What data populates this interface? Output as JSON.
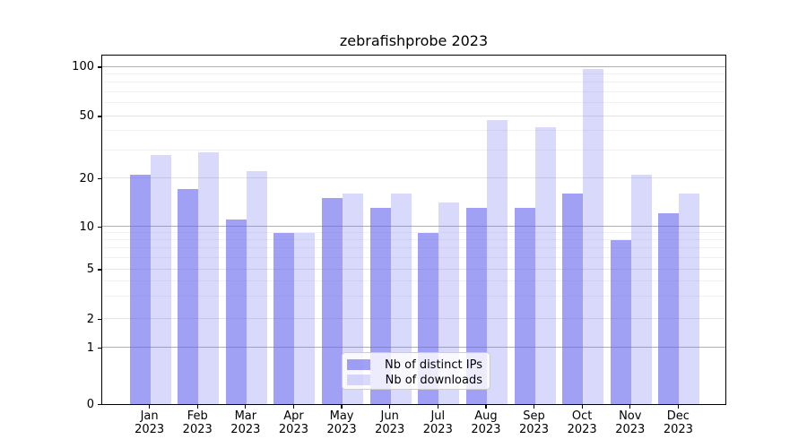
{
  "title": "zebrafishprobe 2023",
  "legend": [
    {
      "label": "Nb of distinct IPs",
      "color": "rgba(102,102,238,0.62)"
    },
    {
      "label": "Nb of downloads",
      "color": "rgba(102,102,238,0.25)"
    }
  ],
  "axis": {
    "y_ticks": [
      0,
      1,
      2,
      5,
      10,
      20,
      50,
      100
    ],
    "y_minor_gridlines": [
      3,
      4,
      6,
      7,
      8,
      9,
      30,
      40,
      60,
      70,
      80,
      90
    ],
    "year_label": "2023"
  },
  "colors": {
    "bar_distinct_ips": "rgba(102,102,238,0.62)",
    "bar_downloads": "rgba(102,102,238,0.25)",
    "gridline_power10": "#b0b0b0",
    "gridline_major": "#e4e4e4",
    "gridline_minor": "#f2f2f2",
    "spine": "#000000"
  },
  "chart_data": {
    "type": "bar",
    "title": "zebrafishprobe 2023",
    "categories": [
      "Jan",
      "Feb",
      "Mar",
      "Apr",
      "May",
      "Jun",
      "Jul",
      "Aug",
      "Sep",
      "Oct",
      "Nov",
      "Dec"
    ],
    "category_year": "2023",
    "series": [
      {
        "name": "Nb of distinct IPs",
        "values": [
          21,
          17,
          11,
          9,
          15,
          13,
          9,
          13,
          13,
          16,
          8,
          12
        ]
      },
      {
        "name": "Nb of downloads",
        "values": [
          28,
          29,
          22,
          9,
          16,
          16,
          14,
          47,
          42,
          96,
          21,
          16
        ]
      }
    ],
    "ylabel": "",
    "xlabel": "",
    "yscale": "log-like (linear 0-1, compressed log above)",
    "yticks": [
      0,
      1,
      2,
      5,
      10,
      20,
      50,
      100
    ],
    "ylim": [
      0,
      120
    ],
    "grid": true,
    "legend_position": "lower center"
  }
}
